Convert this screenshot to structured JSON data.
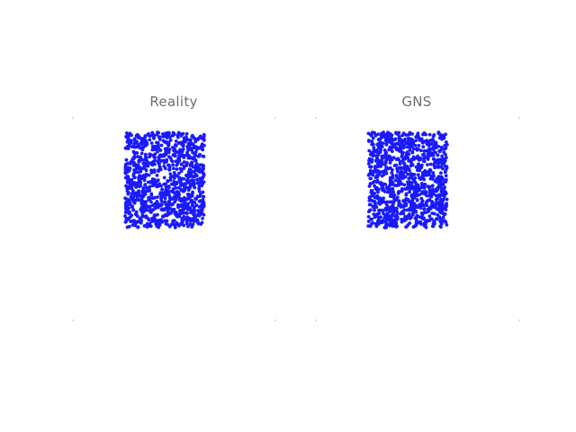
{
  "panels": [
    {
      "title": "Reality",
      "particle_color": "#1a1aff",
      "particle_count": 1100,
      "seed": 17
    },
    {
      "title": "GNS",
      "particle_color": "#1a1aff",
      "particle_count": 1100,
      "seed": 29
    }
  ]
}
